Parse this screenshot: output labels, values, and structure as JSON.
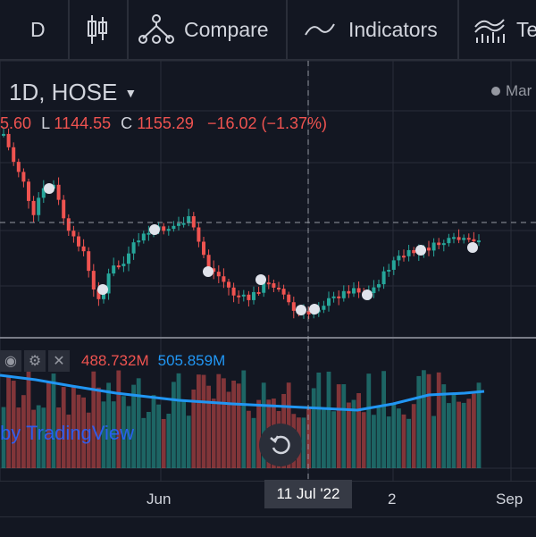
{
  "toolbar": {
    "interval": "D",
    "compare_label": "Compare",
    "indicators_label": "Indicators",
    "templates_label": "Te"
  },
  "legend": {
    "symbol": "1D, HOSE",
    "market_status": "Mar",
    "open_tail": "5.60",
    "low_label": "L",
    "low": "1144.55",
    "close_label": "C",
    "close": "1155.29",
    "change": "−16.02 (−1.37%)"
  },
  "volume": {
    "value_red": "488.732M",
    "value_blue": "505.859M"
  },
  "watermark": "by TradingView",
  "time_axis": {
    "ticks": [
      "Jun",
      "2",
      "Sep"
    ],
    "crosshair_date": "11 Jul '22"
  },
  "bottom_strip": "...",
  "colors": {
    "background": "#131722",
    "up": "#26a69a",
    "down": "#ef5350",
    "ma": "#2196f3",
    "grid": "#2a2e39"
  }
}
